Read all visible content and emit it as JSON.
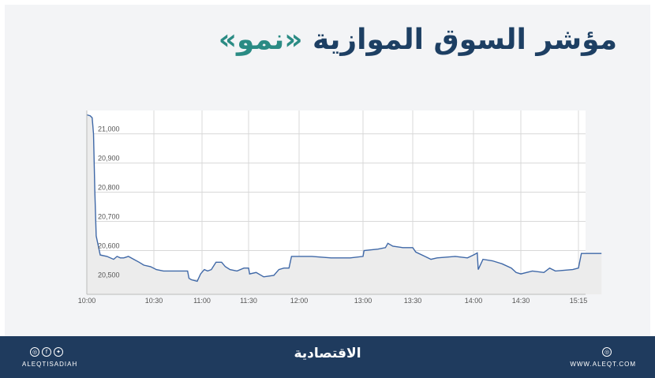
{
  "title": {
    "main": "مؤشر السوق الموازية",
    "accent": "«نمو»"
  },
  "chart_data": {
    "type": "area",
    "title": "مؤشر السوق الموازية «نمو»",
    "xlabel": "",
    "ylabel": "",
    "x_ticks": [
      "10:00",
      "10:30",
      "11:00",
      "11:30",
      "12:00",
      "13:00",
      "13:30",
      "14:00",
      "14:30",
      "15:15"
    ],
    "y_ticks": [
      "20,500",
      "20,600",
      "20,700",
      "20,800",
      "20,900",
      "21,000"
    ],
    "ylim": [
      20450,
      21080
    ],
    "grid": true,
    "series": [
      {
        "values": [
          [
            0,
            21065
          ],
          [
            0.05,
            21062
          ],
          [
            0.08,
            21055
          ],
          [
            0.1,
            21000
          ],
          [
            0.12,
            20800
          ],
          [
            0.14,
            20650
          ],
          [
            0.2,
            20585
          ],
          [
            0.3,
            20580
          ],
          [
            0.4,
            20570
          ],
          [
            0.45,
            20580
          ],
          [
            0.5,
            20575
          ],
          [
            0.55,
            20575
          ],
          [
            0.62,
            20580
          ],
          [
            0.7,
            20570
          ],
          [
            0.78,
            20560
          ],
          [
            0.85,
            20550
          ],
          [
            0.95,
            20545
          ],
          [
            1.05,
            20535
          ],
          [
            1.2,
            20530
          ],
          [
            1.5,
            20530
          ],
          [
            1.7,
            20530
          ],
          [
            1.73,
            20505
          ],
          [
            1.78,
            20500
          ],
          [
            1.9,
            20495
          ],
          [
            1.97,
            20520
          ],
          [
            2.05,
            20535
          ],
          [
            2.12,
            20530
          ],
          [
            2.2,
            20535
          ],
          [
            2.3,
            20560
          ],
          [
            2.42,
            20560
          ],
          [
            2.5,
            20545
          ],
          [
            2.6,
            20535
          ],
          [
            2.75,
            20530
          ],
          [
            2.9,
            20540
          ],
          [
            3.0,
            20540
          ],
          [
            3.02,
            20520
          ],
          [
            3.15,
            20525
          ],
          [
            3.3,
            20510
          ],
          [
            3.5,
            20515
          ],
          [
            3.6,
            20535
          ],
          [
            3.7,
            20540
          ],
          [
            3.8,
            20540
          ],
          [
            3.85,
            20580
          ],
          [
            4.2,
            20580
          ],
          [
            4.5,
            20575
          ],
          [
            4.8,
            20575
          ],
          [
            5.0,
            20580
          ],
          [
            5.02,
            20600
          ],
          [
            5.3,
            20605
          ],
          [
            5.45,
            20610
          ],
          [
            5.5,
            20625
          ],
          [
            5.6,
            20615
          ],
          [
            5.8,
            20610
          ],
          [
            6.0,
            20610
          ],
          [
            6.05,
            20595
          ],
          [
            6.2,
            20580
          ],
          [
            6.3,
            20570
          ],
          [
            6.4,
            20575
          ],
          [
            6.7,
            20580
          ],
          [
            6.9,
            20575
          ],
          [
            7.0,
            20585
          ],
          [
            7.08,
            20592
          ],
          [
            7.1,
            20535
          ],
          [
            7.2,
            20570
          ],
          [
            7.4,
            20565
          ],
          [
            7.6,
            20555
          ],
          [
            7.8,
            20540
          ],
          [
            7.9,
            20525
          ],
          [
            8.0,
            20520
          ],
          [
            8.2,
            20530
          ],
          [
            8.4,
            20525
          ],
          [
            8.5,
            20540
          ],
          [
            8.6,
            20530
          ],
          [
            8.9,
            20535
          ],
          [
            9.0,
            20540
          ],
          [
            9.05,
            20590
          ],
          [
            9.4,
            20590
          ]
        ]
      }
    ]
  },
  "footer": {
    "brand": "الاقتصادية",
    "handle": "ALEQTISADIAH",
    "site": "WWW.ALEQT.COM"
  },
  "colors": {
    "line": "#3f68a7",
    "fill": "#ececec",
    "grid": "#d8d8d8",
    "footer": "#1f3b5e"
  }
}
